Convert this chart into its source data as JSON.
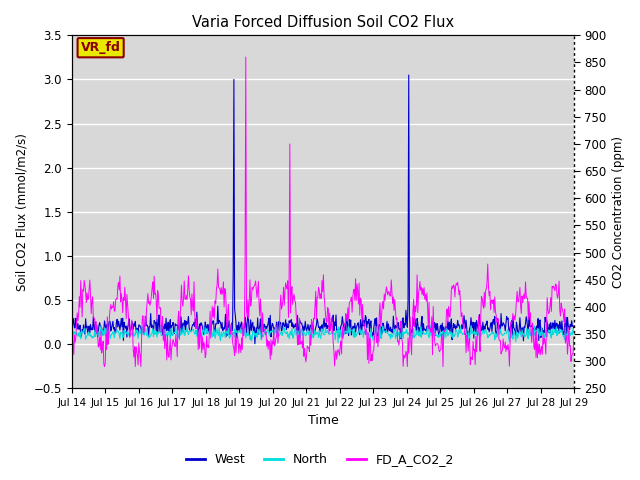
{
  "title": "Varia Forced Diffusion Soil CO2 Flux",
  "xlabel": "Time",
  "ylabel_left": "Soil CO2 Flux (mmol/m2/s)",
  "ylabel_right": "CO2 Concentration (ppm)",
  "ylim_left": [
    -0.5,
    3.5
  ],
  "ylim_right": [
    250,
    900
  ],
  "x_tick_labels": [
    "Jul 14",
    "Jul 15",
    "Jul 16",
    "Jul 17",
    "Jul 18",
    "Jul 19",
    "Jul 20",
    "Jul 21",
    "Jul 22",
    "Jul 23",
    "Jul 24",
    "Jul 25",
    "Jul 26",
    "Jul 27",
    "Jul 28",
    "Jul 29"
  ],
  "west_color": "#0000cd",
  "north_color": "#00dddd",
  "co2_color": "#ff00ff",
  "background_color": "#d8d8d8",
  "annotation_text": "VR_fd",
  "annotation_color": "#8b0000",
  "annotation_bg": "#e8e800",
  "legend_entries": [
    "West",
    "North",
    "FD_A_CO2_2"
  ],
  "yticks_left": [
    -0.5,
    0.0,
    0.5,
    1.0,
    1.5,
    2.0,
    2.5,
    3.0,
    3.5
  ],
  "yticks_right": [
    250,
    300,
    350,
    400,
    450,
    500,
    550,
    600,
    650,
    700,
    750,
    800,
    850,
    900
  ],
  "seed": 42,
  "n_points": 720,
  "days": 15
}
